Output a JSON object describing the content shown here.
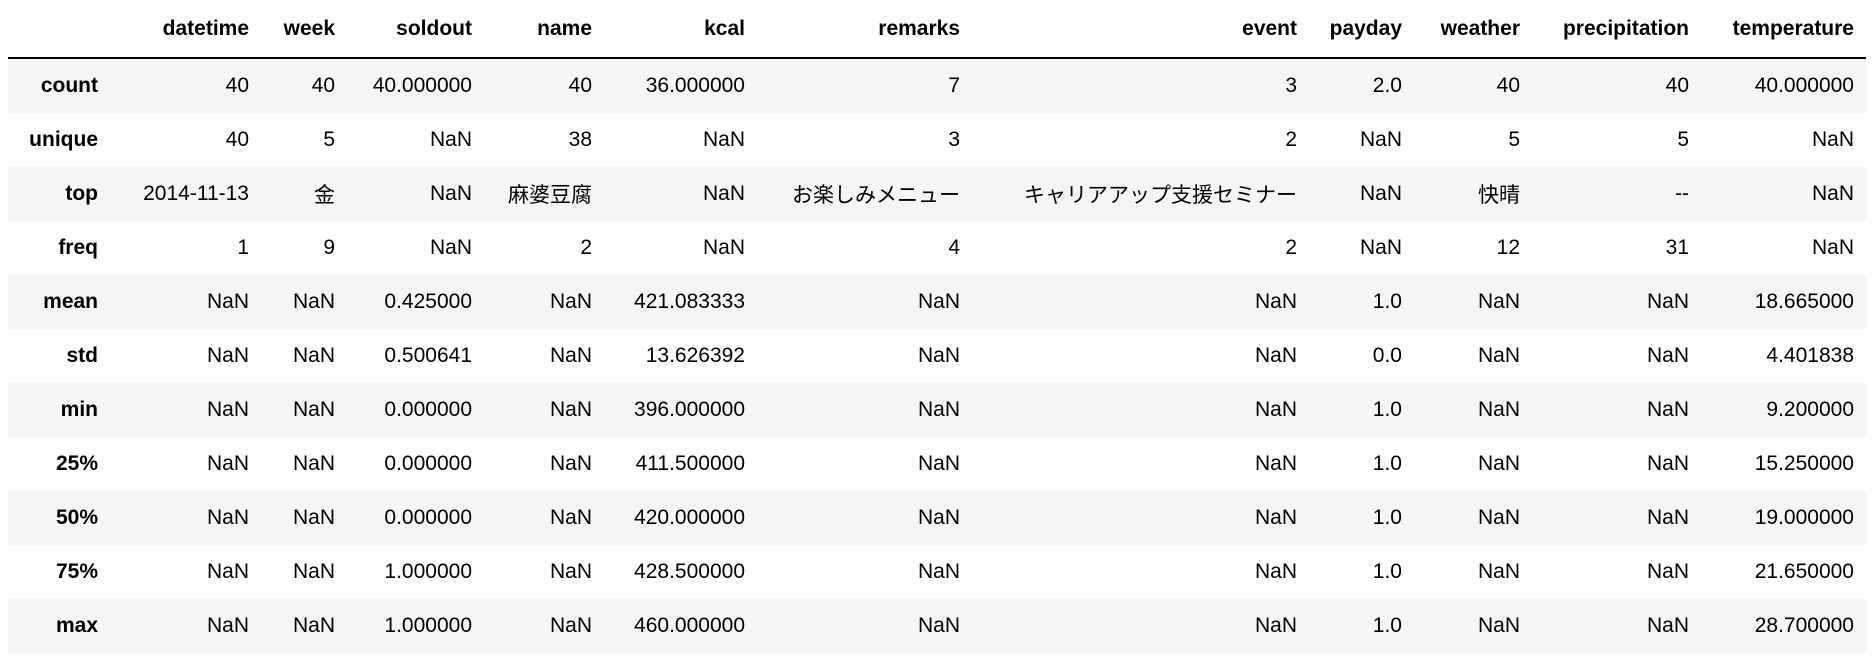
{
  "columns": [
    "datetime",
    "week",
    "soldout",
    "name",
    "kcal",
    "remarks",
    "event",
    "payday",
    "weather",
    "precipitation",
    "temperature"
  ],
  "rows": [
    {
      "index": "count",
      "cells": [
        "40",
        "40",
        "40.000000",
        "40",
        "36.000000",
        "7",
        "3",
        "2.0",
        "40",
        "40",
        "40.000000"
      ]
    },
    {
      "index": "unique",
      "cells": [
        "40",
        "5",
        "NaN",
        "38",
        "NaN",
        "3",
        "2",
        "NaN",
        "5",
        "5",
        "NaN"
      ]
    },
    {
      "index": "top",
      "cells": [
        "2014-11-13",
        "金",
        "NaN",
        "麻婆豆腐",
        "NaN",
        "お楽しみメニュー",
        "キャリアアップ支援セミナー",
        "NaN",
        "快晴",
        "--",
        "NaN"
      ]
    },
    {
      "index": "freq",
      "cells": [
        "1",
        "9",
        "NaN",
        "2",
        "NaN",
        "4",
        "2",
        "NaN",
        "12",
        "31",
        "NaN"
      ]
    },
    {
      "index": "mean",
      "cells": [
        "NaN",
        "NaN",
        "0.425000",
        "NaN",
        "421.083333",
        "NaN",
        "NaN",
        "1.0",
        "NaN",
        "NaN",
        "18.665000"
      ]
    },
    {
      "index": "std",
      "cells": [
        "NaN",
        "NaN",
        "0.500641",
        "NaN",
        "13.626392",
        "NaN",
        "NaN",
        "0.0",
        "NaN",
        "NaN",
        "4.401838"
      ]
    },
    {
      "index": "min",
      "cells": [
        "NaN",
        "NaN",
        "0.000000",
        "NaN",
        "396.000000",
        "NaN",
        "NaN",
        "1.0",
        "NaN",
        "NaN",
        "9.200000"
      ]
    },
    {
      "index": "25%",
      "cells": [
        "NaN",
        "NaN",
        "0.000000",
        "NaN",
        "411.500000",
        "NaN",
        "NaN",
        "1.0",
        "NaN",
        "NaN",
        "15.250000"
      ]
    },
    {
      "index": "50%",
      "cells": [
        "NaN",
        "NaN",
        "0.000000",
        "NaN",
        "420.000000",
        "NaN",
        "NaN",
        "1.0",
        "NaN",
        "NaN",
        "19.000000"
      ]
    },
    {
      "index": "75%",
      "cells": [
        "NaN",
        "NaN",
        "1.000000",
        "NaN",
        "428.500000",
        "NaN",
        "NaN",
        "1.0",
        "NaN",
        "NaN",
        "21.650000"
      ]
    },
    {
      "index": "max",
      "cells": [
        "NaN",
        "NaN",
        "1.000000",
        "NaN",
        "460.000000",
        "NaN",
        "NaN",
        "1.0",
        "NaN",
        "NaN",
        "28.700000"
      ]
    }
  ]
}
